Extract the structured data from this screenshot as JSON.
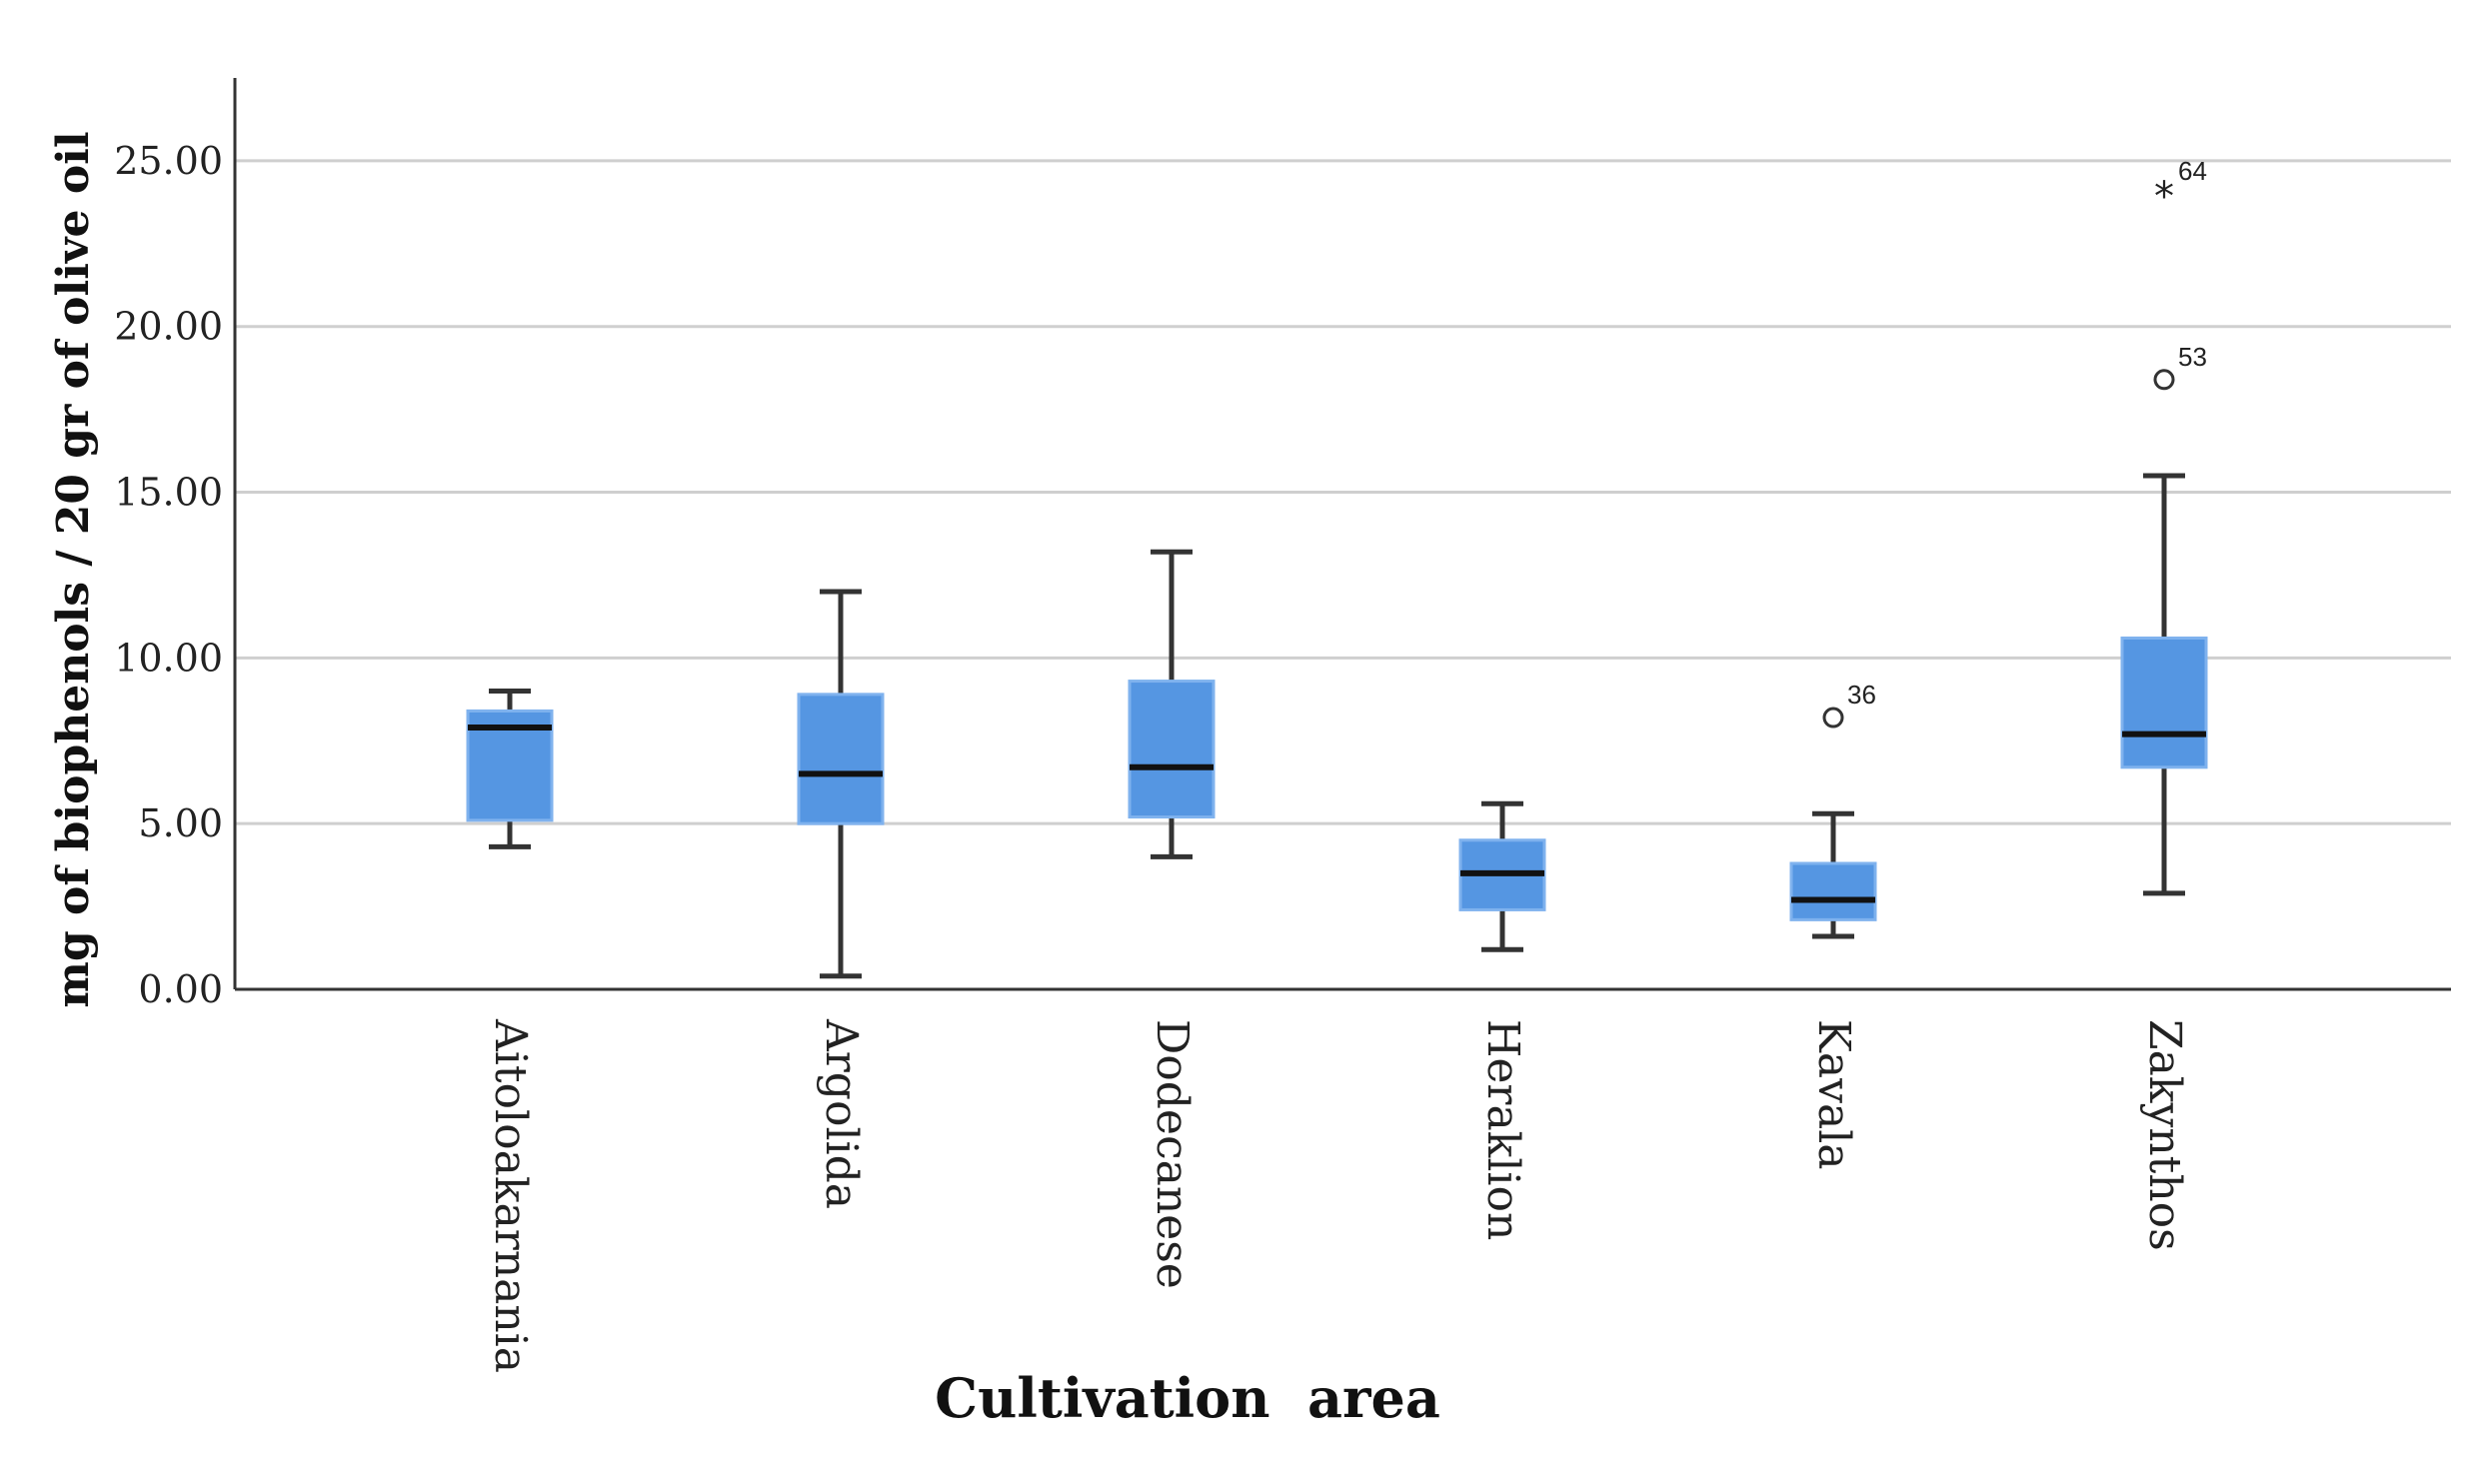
{
  "chart_data": {
    "type": "boxplot",
    "title": "",
    "xlabel": "Cultivation  area",
    "ylabel": "mg of biophenols / 20 gr of olive oil",
    "ylim": [
      0,
      27.5
    ],
    "yticks": [
      0,
      5,
      10,
      15,
      20,
      25
    ],
    "ytick_labels": [
      "0.00",
      "5.00",
      "10.00",
      "15.00",
      "20.00",
      "25.00"
    ],
    "grid": true,
    "categories": [
      "Aitoloakarnania",
      "Argolida",
      "Dodecanese",
      "Heraklion",
      "Kavala",
      "Zakynthos"
    ],
    "boxes": [
      {
        "category": "Aitoloakarnania",
        "whisker_low": 4.3,
        "q1": 5.1,
        "median": 7.9,
        "q3": 8.4,
        "whisker_high": 9.0,
        "outliers": []
      },
      {
        "category": "Argolida",
        "whisker_low": 0.4,
        "q1": 5.0,
        "median": 6.5,
        "q3": 8.9,
        "whisker_high": 12.0,
        "outliers": []
      },
      {
        "category": "Dodecanese",
        "whisker_low": 4.0,
        "q1": 5.2,
        "median": 6.7,
        "q3": 9.3,
        "whisker_high": 13.2,
        "outliers": []
      },
      {
        "category": "Heraklion",
        "whisker_low": 1.2,
        "q1": 2.4,
        "median": 3.5,
        "q3": 4.5,
        "whisker_high": 5.6,
        "outliers": []
      },
      {
        "category": "Kavala",
        "whisker_low": 1.6,
        "q1": 2.1,
        "median": 2.7,
        "q3": 3.8,
        "whisker_high": 5.3,
        "outliers": [
          {
            "value": 8.2,
            "label": "36",
            "marker": "circle"
          }
        ]
      },
      {
        "category": "Zakynthos",
        "whisker_low": 2.9,
        "q1": 6.7,
        "median": 7.7,
        "q3": 10.6,
        "whisker_high": 15.5,
        "outliers": [
          {
            "value": 18.4,
            "label": "53",
            "marker": "circle"
          },
          {
            "value": 24.0,
            "label": "64",
            "marker": "star"
          }
        ]
      }
    ],
    "colors": {
      "box_fill": "#5596e2",
      "box_stroke": "#7fb2ee",
      "median": "#111111",
      "whisker": "#333333",
      "grid": "#cfcfcf",
      "axis": "#333333"
    }
  }
}
